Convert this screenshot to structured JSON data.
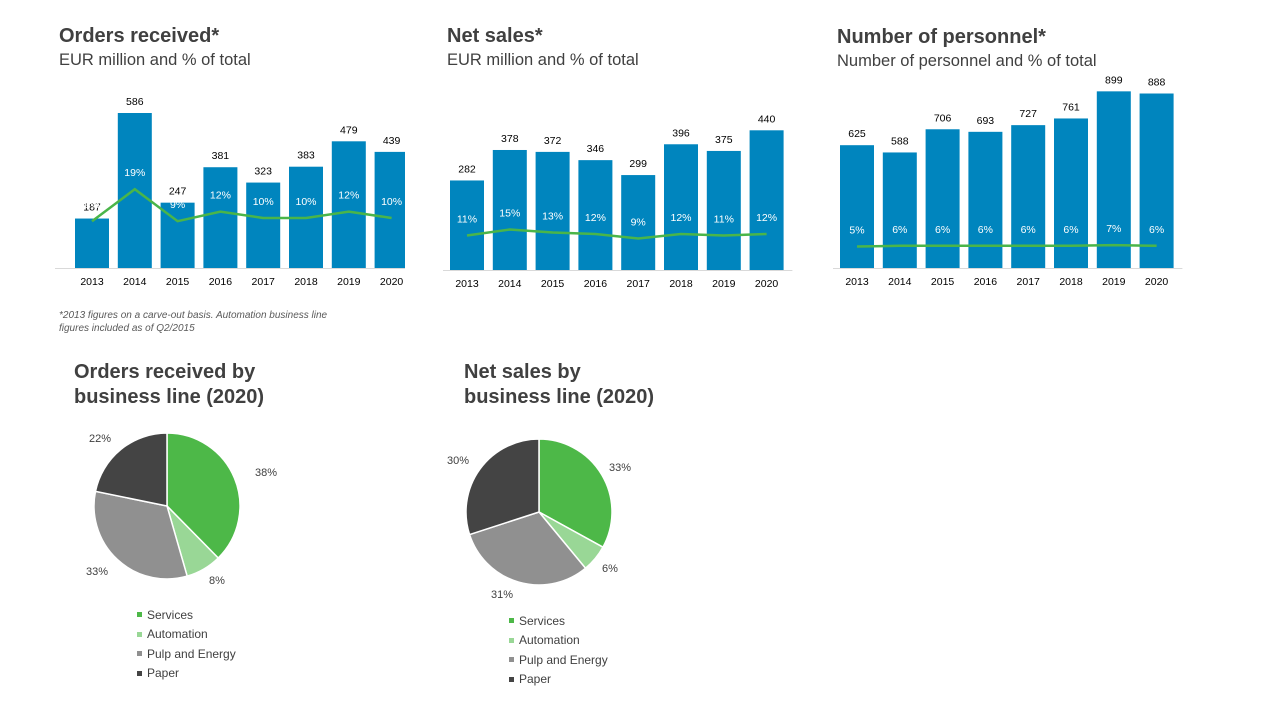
{
  "colors": {
    "bar": "#0085be",
    "line": "#4ab549",
    "services": "#4db848",
    "automation": "#99d796",
    "pulp": "#909090",
    "paper": "#444444"
  },
  "bar_charts": [
    {
      "title": "Orders received*",
      "subtitle": "EUR million and % of total",
      "chart_data": {
        "type": "bar",
        "categories": [
          "2013",
          "2014",
          "2015",
          "2016",
          "2017",
          "2018",
          "2019",
          "2020"
        ],
        "values": [
          187,
          586,
          247,
          381,
          323,
          383,
          479,
          439
        ],
        "values_labels": [
          "187",
          "586",
          "247",
          "381",
          "323",
          "383",
          "479",
          "439"
        ],
        "share_values": [
          9,
          19,
          9,
          12,
          10,
          10,
          12,
          10
        ],
        "share_labels": [
          "9%",
          "19%",
          "9%",
          "12%",
          "10%",
          "10%",
          "12%",
          "10%"
        ]
      }
    },
    {
      "title": "Net sales*",
      "subtitle": "EUR million and % of total",
      "chart_data": {
        "type": "bar",
        "categories": [
          "2013",
          "2014",
          "2015",
          "2016",
          "2017",
          "2018",
          "2019",
          "2020"
        ],
        "values": [
          282,
          378,
          372,
          346,
          299,
          396,
          375,
          440
        ],
        "values_labels": [
          "282",
          "378",
          "372",
          "346",
          "299",
          "396",
          "375",
          "440"
        ],
        "share_values": [
          11,
          15,
          13,
          12,
          9,
          12,
          11,
          12
        ],
        "share_labels": [
          "11%",
          "15%",
          "13%",
          "12%",
          "9%",
          "12%",
          "11%",
          "12%"
        ]
      }
    },
    {
      "title": "Number of personnel*",
      "subtitle": "Number of personnel and % of total",
      "chart_data": {
        "type": "bar",
        "categories": [
          "2013",
          "2014",
          "2015",
          "2016",
          "2017",
          "2018",
          "2019",
          "2020"
        ],
        "values": [
          625,
          588,
          706,
          693,
          727,
          761,
          899,
          888
        ],
        "values_labels": [
          "625",
          "588",
          "706",
          "693",
          "727",
          "761",
          "899",
          "888"
        ],
        "share_values": [
          5,
          6,
          6,
          6,
          6,
          6,
          7,
          6
        ],
        "share_labels": [
          "5%",
          "6%",
          "6%",
          "6%",
          "6%",
          "6%",
          "7%",
          "6%"
        ]
      }
    }
  ],
  "footnote": "*2013 figures on a carve-out basis. Automation business line figures included as of Q2/2015",
  "pie_charts": [
    {
      "title_line1": "Orders received by",
      "title_line2": "business line (2020)",
      "chart_data": {
        "type": "pie",
        "labels": [
          "Services",
          "Automation",
          "Pulp and Energy",
          "Paper"
        ],
        "values": [
          38,
          8,
          33,
          22
        ],
        "value_labels": [
          "38%",
          "8%",
          "33%",
          "22%"
        ]
      }
    },
    {
      "title_line1": "Net sales by",
      "title_line2": "business line (2020)",
      "chart_data": {
        "type": "pie",
        "labels": [
          "Services",
          "Automation",
          "Pulp and Energy",
          "Paper"
        ],
        "values": [
          33,
          6,
          31,
          30
        ],
        "value_labels": [
          "33%",
          "6%",
          "31%",
          "30%"
        ]
      }
    }
  ]
}
